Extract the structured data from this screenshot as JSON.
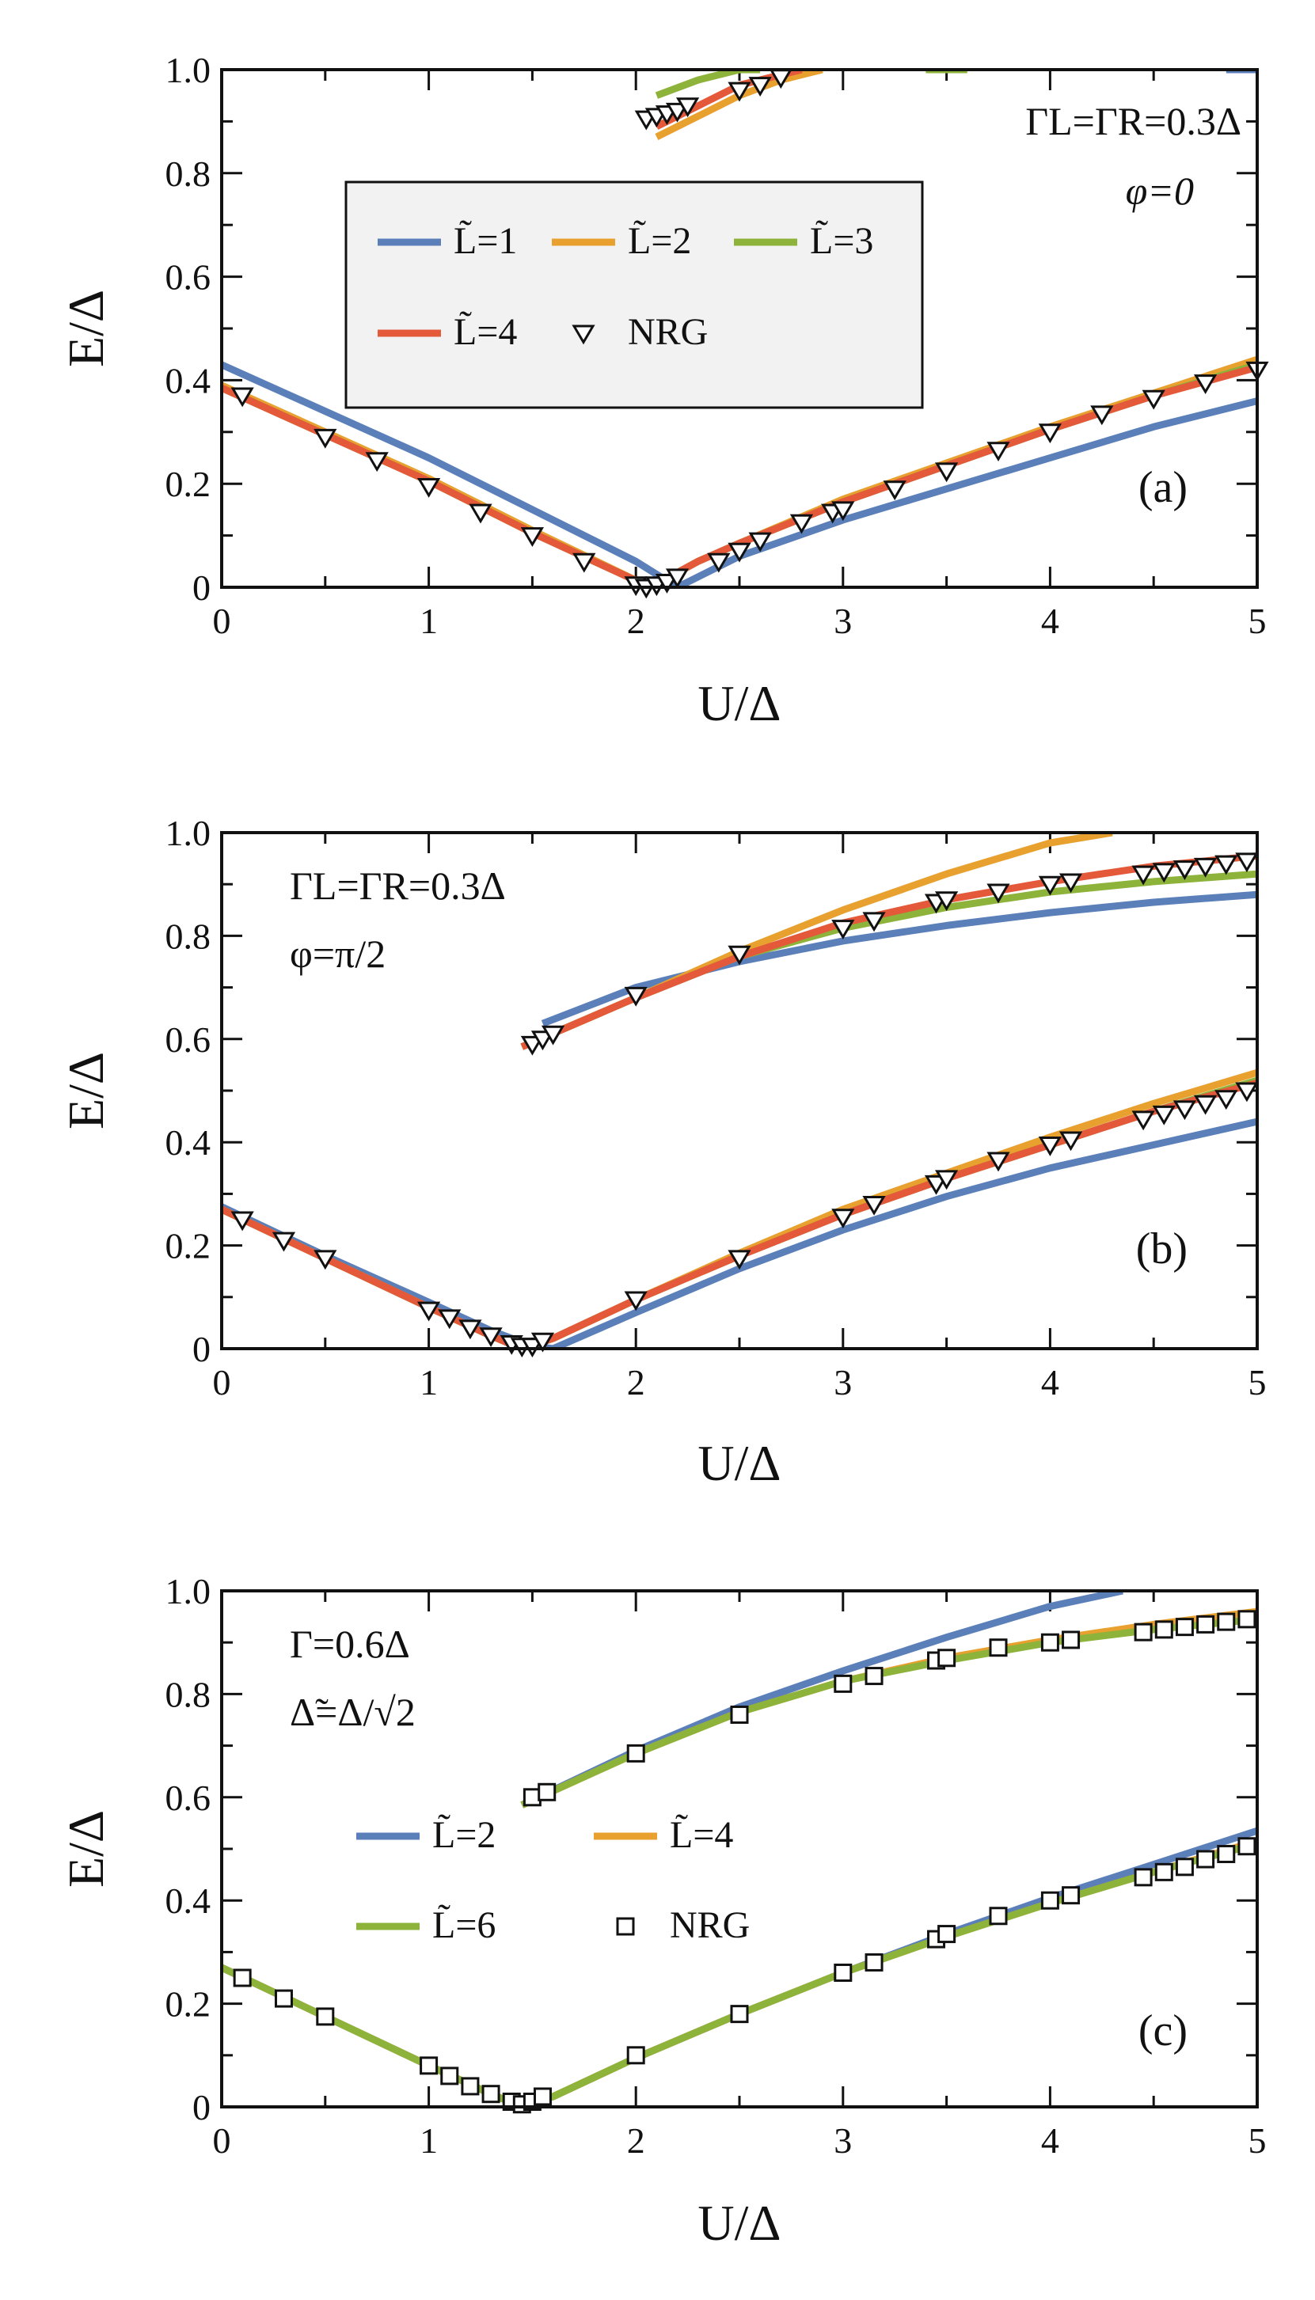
{
  "colors": {
    "blue": "#5b7fb9",
    "orange": "#e8a02f",
    "green": "#8db33a",
    "red": "#e3593a",
    "marker": "#111111",
    "legend_bg": "#f2f2f2"
  },
  "chart_data": [
    {
      "id": "a",
      "type": "line",
      "panel_label": "(a)",
      "xlabel": "U/Δ",
      "ylabel": "E/Δ",
      "xlim": [
        0,
        5
      ],
      "ylim": [
        0,
        1
      ],
      "xticks": [
        "0",
        "1",
        "2",
        "3",
        "4",
        "5"
      ],
      "yticks": [
        "0",
        "0.2",
        "0.4",
        "0.6",
        "0.8",
        "1.0"
      ],
      "annotations": [
        {
          "text": "ΓL=ΓR=0.3Δ",
          "position": "top-right"
        },
        {
          "text": "φ=0",
          "position": "top-right"
        }
      ],
      "legend": {
        "position": "upper-middle",
        "boxed": true,
        "entries": [
          {
            "label": "L̃=1",
            "color": "blue",
            "kind": "line"
          },
          {
            "label": "L̃=2",
            "color": "orange",
            "kind": "line"
          },
          {
            "label": "L̃=3",
            "color": "green",
            "kind": "line"
          },
          {
            "label": "L̃=4",
            "color": "red",
            "kind": "line"
          },
          {
            "label": "NRG",
            "kind": "triangle"
          }
        ]
      },
      "series": [
        {
          "name": "L̃=1 lower",
          "color": "blue",
          "kind": "line",
          "x": [
            0,
            0.5,
            1,
            1.5,
            2.0,
            2.2,
            2.5,
            3,
            3.5,
            4,
            4.5,
            5
          ],
          "y": [
            0.43,
            0.34,
            0.25,
            0.15,
            0.05,
            0.0,
            0.06,
            0.13,
            0.19,
            0.25,
            0.31,
            0.36
          ]
        },
        {
          "name": "L̃=2 lower",
          "color": "orange",
          "kind": "line",
          "x": [
            0,
            0.5,
            1,
            1.5,
            2.07,
            2.3,
            2.5,
            3,
            3.5,
            4,
            4.5,
            5
          ],
          "y": [
            0.39,
            0.3,
            0.21,
            0.11,
            0.0,
            0.05,
            0.085,
            0.17,
            0.24,
            0.31,
            0.375,
            0.44
          ]
        },
        {
          "name": "L̃=3 lower",
          "color": "green",
          "kind": "line",
          "x": [
            0,
            0.5,
            1,
            1.5,
            2.07,
            2.3,
            2.5,
            3,
            3.5,
            4,
            4.5,
            5
          ],
          "y": [
            0.385,
            0.295,
            0.205,
            0.105,
            0.0,
            0.05,
            0.085,
            0.165,
            0.235,
            0.305,
            0.37,
            0.43
          ]
        },
        {
          "name": "L̃=4 lower",
          "color": "red",
          "kind": "line",
          "x": [
            0,
            0.5,
            1,
            1.5,
            2.07,
            2.3,
            2.5,
            3,
            3.5,
            4,
            4.5,
            5
          ],
          "y": [
            0.385,
            0.295,
            0.205,
            0.105,
            0.0,
            0.05,
            0.085,
            0.165,
            0.235,
            0.305,
            0.37,
            0.425
          ]
        },
        {
          "name": "L̃=2 upper",
          "color": "orange",
          "kind": "line",
          "x": [
            2.1,
            2.3,
            2.5,
            2.7,
            2.9
          ],
          "y": [
            0.87,
            0.91,
            0.95,
            0.98,
            1.0
          ]
        },
        {
          "name": "L̃=3 upper",
          "color": "green",
          "kind": "line",
          "x": [
            2.1,
            2.3,
            2.5,
            2.6
          ],
          "y": [
            0.95,
            0.98,
            1.0,
            1.0
          ]
        },
        {
          "name": "L̃=4 upper",
          "color": "red",
          "kind": "line",
          "x": [
            2.1,
            2.3,
            2.5,
            2.7,
            2.8
          ],
          "y": [
            0.89,
            0.93,
            0.97,
            0.99,
            1.0
          ]
        },
        {
          "name": "L̃=3 upper tail",
          "color": "green",
          "kind": "line",
          "x": [
            3.4,
            3.6
          ],
          "y": [
            1.0,
            1.0
          ]
        },
        {
          "name": "L̃=1 upper tail",
          "color": "blue",
          "kind": "line",
          "x": [
            4.85,
            5.0
          ],
          "y": [
            1.0,
            1.0
          ]
        },
        {
          "name": "NRG",
          "kind": "triangle",
          "x": [
            0.1,
            0.5,
            0.75,
            1.0,
            1.25,
            1.5,
            1.75,
            2.0,
            2.05,
            2.1,
            2.15,
            2.2,
            2.4,
            2.5,
            2.6,
            2.8,
            2.95,
            3.0,
            3.25,
            3.5,
            3.75,
            4.0,
            4.25,
            4.5,
            4.75,
            5.0,
            2.05,
            2.1,
            2.15,
            2.2,
            2.25,
            2.5,
            2.6,
            2.7
          ],
          "y": [
            0.37,
            0.29,
            0.245,
            0.195,
            0.145,
            0.1,
            0.05,
            0.005,
            0.0,
            0.005,
            0.01,
            0.02,
            0.05,
            0.07,
            0.09,
            0.125,
            0.145,
            0.15,
            0.19,
            0.225,
            0.265,
            0.3,
            0.335,
            0.365,
            0.395,
            0.42,
            0.905,
            0.91,
            0.915,
            0.92,
            0.93,
            0.96,
            0.97,
            0.985
          ]
        }
      ]
    },
    {
      "id": "b",
      "type": "line",
      "panel_label": "(b)",
      "xlabel": "U/Δ",
      "ylabel": "E/Δ",
      "xlim": [
        0,
        5
      ],
      "ylim": [
        0,
        1
      ],
      "xticks": [
        "0",
        "1",
        "2",
        "3",
        "4",
        "5"
      ],
      "yticks": [
        "0",
        "0.2",
        "0.4",
        "0.6",
        "0.8",
        "1.0"
      ],
      "annotations": [
        {
          "text": "ΓL=ΓR=0.3Δ",
          "position": "top-left"
        },
        {
          "text": "φ=π/2",
          "position": "top-left"
        }
      ],
      "series": [
        {
          "name": "L̃=1 lower",
          "color": "blue",
          "kind": "line",
          "x": [
            0,
            0.5,
            1,
            1.3,
            1.5,
            1.6,
            2,
            2.5,
            3,
            3.5,
            4,
            4.5,
            5
          ],
          "y": [
            0.275,
            0.18,
            0.09,
            0.035,
            0.005,
            0.0,
            0.07,
            0.155,
            0.23,
            0.295,
            0.35,
            0.395,
            0.44
          ]
        },
        {
          "name": "L̃=2 lower",
          "color": "orange",
          "kind": "line",
          "x": [
            0,
            0.5,
            1,
            1.3,
            1.45,
            1.6,
            2,
            2.5,
            3,
            3.5,
            4,
            4.5,
            5
          ],
          "y": [
            0.27,
            0.175,
            0.08,
            0.025,
            0.0,
            0.02,
            0.095,
            0.185,
            0.27,
            0.34,
            0.41,
            0.475,
            0.535
          ]
        },
        {
          "name": "L̃=3 lower",
          "color": "green",
          "kind": "line",
          "x": [
            0,
            0.5,
            1,
            1.3,
            1.45,
            1.6,
            2,
            2.5,
            3,
            3.5,
            4,
            4.5,
            5
          ],
          "y": [
            0.27,
            0.175,
            0.08,
            0.025,
            0.0,
            0.02,
            0.095,
            0.18,
            0.26,
            0.33,
            0.395,
            0.46,
            0.52
          ]
        },
        {
          "name": "L̃=4 lower",
          "color": "red",
          "kind": "line",
          "x": [
            0,
            0.5,
            1,
            1.3,
            1.45,
            1.6,
            2,
            2.5,
            3,
            3.5,
            4,
            4.5,
            5
          ],
          "y": [
            0.27,
            0.175,
            0.08,
            0.025,
            0.0,
            0.02,
            0.095,
            0.18,
            0.26,
            0.33,
            0.395,
            0.46,
            0.515
          ]
        },
        {
          "name": "L̃=1 upper",
          "color": "blue",
          "kind": "line",
          "x": [
            1.55,
            2,
            2.5,
            3,
            3.5,
            4,
            4.5,
            5
          ],
          "y": [
            0.63,
            0.7,
            0.75,
            0.79,
            0.82,
            0.845,
            0.865,
            0.88
          ]
        },
        {
          "name": "L̃=2 upper",
          "color": "orange",
          "kind": "line",
          "x": [
            1.45,
            2,
            2.5,
            3,
            3.5,
            4,
            4.3
          ],
          "y": [
            0.585,
            0.68,
            0.77,
            0.85,
            0.92,
            0.98,
            1.0
          ]
        },
        {
          "name": "L̃=3 upper",
          "color": "green",
          "kind": "line",
          "x": [
            1.45,
            2,
            2.5,
            3,
            3.5,
            4,
            4.5,
            5
          ],
          "y": [
            0.585,
            0.68,
            0.76,
            0.815,
            0.855,
            0.885,
            0.905,
            0.92
          ]
        },
        {
          "name": "L̃=4 upper",
          "color": "red",
          "kind": "line",
          "x": [
            1.45,
            2,
            2.5,
            3,
            3.5,
            4,
            4.5,
            5
          ],
          "y": [
            0.585,
            0.68,
            0.76,
            0.825,
            0.87,
            0.905,
            0.935,
            0.955
          ]
        },
        {
          "name": "NRG",
          "kind": "triangle",
          "x": [
            0.1,
            0.3,
            0.5,
            1.0,
            1.1,
            1.2,
            1.3,
            1.4,
            1.45,
            1.5,
            1.55,
            2.0,
            2.5,
            3.0,
            3.15,
            3.45,
            3.5,
            3.75,
            4.0,
            4.1,
            4.45,
            4.55,
            4.65,
            4.75,
            4.85,
            4.95,
            1.5,
            1.55,
            1.6,
            2.0,
            2.5,
            3.0,
            3.15,
            3.45,
            3.5,
            3.75,
            4.0,
            4.1,
            4.45,
            4.55,
            4.65,
            4.75,
            4.85,
            4.95
          ],
          "y": [
            0.25,
            0.21,
            0.175,
            0.075,
            0.06,
            0.04,
            0.025,
            0.01,
            0.005,
            0.005,
            0.015,
            0.095,
            0.175,
            0.255,
            0.28,
            0.32,
            0.33,
            0.365,
            0.395,
            0.405,
            0.445,
            0.455,
            0.465,
            0.475,
            0.485,
            0.5,
            0.59,
            0.6,
            0.61,
            0.685,
            0.765,
            0.815,
            0.83,
            0.865,
            0.87,
            0.885,
            0.9,
            0.905,
            0.92,
            0.925,
            0.93,
            0.935,
            0.94,
            0.945
          ]
        }
      ]
    },
    {
      "id": "c",
      "type": "line",
      "panel_label": "(c)",
      "xlabel": "U/Δ",
      "ylabel": "E/Δ",
      "xlim": [
        0,
        5
      ],
      "ylim": [
        0,
        1
      ],
      "xticks": [
        "0",
        "1",
        "2",
        "3",
        "4",
        "5"
      ],
      "yticks": [
        "0",
        "0.2",
        "0.4",
        "0.6",
        "0.8",
        "1.0"
      ],
      "annotations": [
        {
          "text": "Γ=0.6Δ",
          "position": "top-left"
        },
        {
          "text": "Δ̃=Δ/√2",
          "position": "top-left"
        }
      ],
      "legend": {
        "position": "middle-left",
        "boxed": false,
        "entries": [
          {
            "label": "L̃=2",
            "color": "blue",
            "kind": "line"
          },
          {
            "label": "L̃=4",
            "color": "orange",
            "kind": "line"
          },
          {
            "label": "L̃=6",
            "color": "green",
            "kind": "line"
          },
          {
            "label": "NRG",
            "kind": "square"
          }
        ]
      },
      "series": [
        {
          "name": "L̃=2 lower",
          "color": "blue",
          "kind": "line",
          "x": [
            0,
            0.5,
            1,
            1.3,
            1.45,
            1.6,
            2,
            2.5,
            3,
            3.5,
            4,
            4.5,
            5
          ],
          "y": [
            0.27,
            0.175,
            0.08,
            0.025,
            0.0,
            0.02,
            0.095,
            0.18,
            0.26,
            0.335,
            0.405,
            0.47,
            0.535
          ]
        },
        {
          "name": "L̃=4 lower",
          "color": "orange",
          "kind": "line",
          "x": [
            0,
            0.5,
            1,
            1.3,
            1.45,
            1.6,
            2,
            2.5,
            3,
            3.5,
            4,
            4.5,
            5
          ],
          "y": [
            0.27,
            0.175,
            0.08,
            0.025,
            0.0,
            0.02,
            0.095,
            0.18,
            0.26,
            0.33,
            0.395,
            0.455,
            0.515
          ]
        },
        {
          "name": "L̃=6 lower",
          "color": "green",
          "kind": "line",
          "x": [
            0,
            0.5,
            1,
            1.3,
            1.45,
            1.6,
            2,
            2.5,
            3,
            3.5,
            4,
            4.5,
            5
          ],
          "y": [
            0.27,
            0.175,
            0.08,
            0.025,
            0.0,
            0.02,
            0.095,
            0.18,
            0.26,
            0.33,
            0.395,
            0.455,
            0.51
          ]
        },
        {
          "name": "L̃=2 upper",
          "color": "blue",
          "kind": "line",
          "x": [
            1.45,
            2,
            2.5,
            3,
            3.5,
            4,
            4.35
          ],
          "y": [
            0.585,
            0.69,
            0.775,
            0.845,
            0.91,
            0.97,
            1.0
          ]
        },
        {
          "name": "L̃=4 upper",
          "color": "orange",
          "kind": "line",
          "x": [
            1.45,
            2,
            2.5,
            3,
            3.5,
            4,
            4.5,
            5
          ],
          "y": [
            0.585,
            0.685,
            0.765,
            0.825,
            0.87,
            0.905,
            0.935,
            0.96
          ]
        },
        {
          "name": "L̃=6 upper",
          "color": "green",
          "kind": "line",
          "x": [
            1.45,
            2,
            2.5,
            3,
            3.5,
            4,
            4.5,
            5
          ],
          "y": [
            0.585,
            0.685,
            0.765,
            0.825,
            0.865,
            0.9,
            0.925,
            0.945
          ]
        },
        {
          "name": "NRG",
          "kind": "square",
          "x": [
            0.1,
            0.3,
            0.5,
            1.0,
            1.1,
            1.2,
            1.3,
            1.4,
            1.45,
            1.5,
            1.55,
            2.0,
            2.5,
            3.0,
            3.15,
            3.45,
            3.5,
            3.75,
            4.0,
            4.1,
            4.45,
            4.55,
            4.65,
            4.75,
            4.85,
            4.95,
            1.5,
            1.57,
            2.0,
            2.5,
            3.0,
            3.15,
            3.45,
            3.5,
            3.75,
            4.0,
            4.1,
            4.45,
            4.55,
            4.65,
            4.75,
            4.85,
            4.95
          ],
          "y": [
            0.25,
            0.21,
            0.175,
            0.08,
            0.06,
            0.04,
            0.025,
            0.01,
            0.005,
            0.01,
            0.02,
            0.1,
            0.18,
            0.26,
            0.28,
            0.325,
            0.335,
            0.37,
            0.4,
            0.41,
            0.445,
            0.455,
            0.465,
            0.48,
            0.49,
            0.505,
            0.6,
            0.61,
            0.685,
            0.76,
            0.82,
            0.835,
            0.865,
            0.87,
            0.89,
            0.9,
            0.905,
            0.92,
            0.925,
            0.93,
            0.935,
            0.94,
            0.945
          ]
        }
      ]
    }
  ]
}
